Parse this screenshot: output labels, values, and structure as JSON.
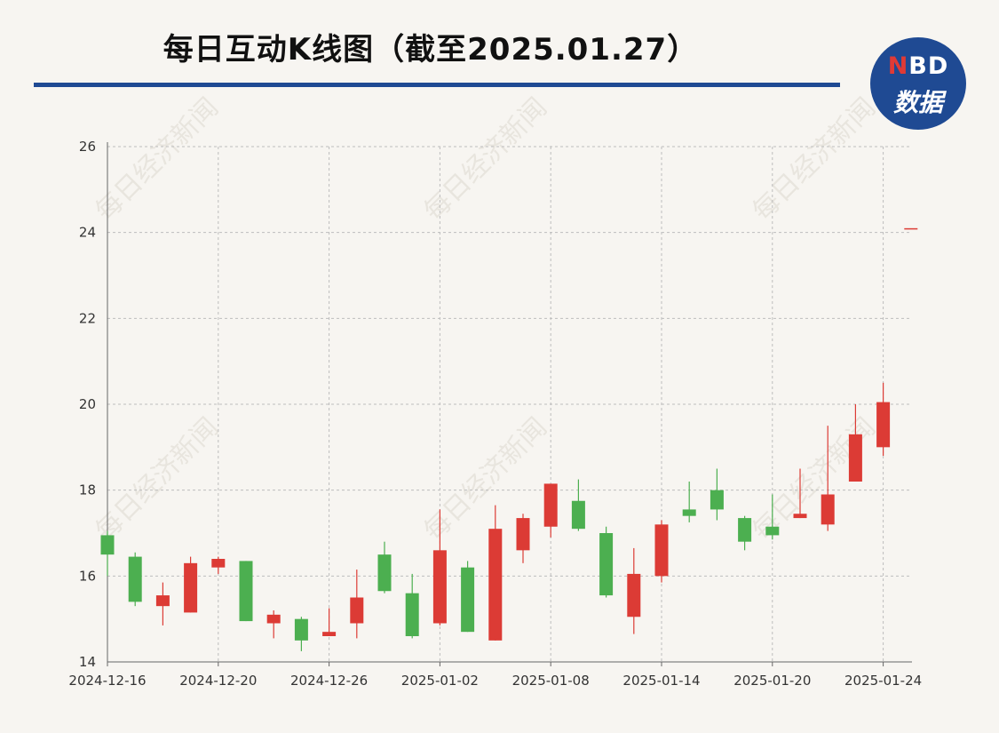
{
  "title": "每日互动K线图（截至2025.01.27）",
  "logo": {
    "n": "N",
    "rest": "BD",
    "line2": "数据"
  },
  "watermark": "每日经济新闻",
  "colors": {
    "up": "#dc3b35",
    "down": "#4caf50",
    "brand": "#1f4a93",
    "grid": "#bdbdbd"
  },
  "chart_data": {
    "type": "candlestick",
    "title": "每日互动K线图（截至2025.01.27）",
    "ylim": [
      14,
      26
    ],
    "yticks": [
      14,
      16,
      18,
      20,
      22,
      24,
      26
    ],
    "xtick_labels": [
      "2024-12-16",
      "2024-12-20",
      "2024-12-26",
      "2025-01-02",
      "2025-01-08",
      "2025-01-14",
      "2025-01-20",
      "2025-01-24"
    ],
    "xtick_indices": [
      0,
      4,
      8,
      12,
      16,
      20,
      24,
      28
    ],
    "grid": true,
    "candles": [
      {
        "date": "2024-12-16",
        "open": 16.95,
        "close": 16.5,
        "high": 17.05,
        "low": 16.0
      },
      {
        "date": "2024-12-17",
        "open": 16.45,
        "close": 15.4,
        "high": 16.55,
        "low": 15.3
      },
      {
        "date": "2024-12-18",
        "open": 15.3,
        "close": 15.55,
        "high": 15.85,
        "low": 14.85
      },
      {
        "date": "2024-12-19",
        "open": 15.15,
        "close": 16.3,
        "high": 16.45,
        "low": 15.15
      },
      {
        "date": "2024-12-20",
        "open": 16.2,
        "close": 16.4,
        "high": 16.45,
        "low": 16.05
      },
      {
        "date": "2024-12-23",
        "open": 16.35,
        "close": 14.95,
        "high": 16.35,
        "low": 14.95
      },
      {
        "date": "2024-12-24",
        "open": 14.9,
        "close": 15.1,
        "high": 15.2,
        "low": 14.55
      },
      {
        "date": "2024-12-25",
        "open": 15.0,
        "close": 14.5,
        "high": 15.05,
        "low": 14.25
      },
      {
        "date": "2024-12-26",
        "open": 14.6,
        "close": 14.7,
        "high": 15.25,
        "low": 14.6
      },
      {
        "date": "2024-12-27",
        "open": 14.9,
        "close": 15.5,
        "high": 16.15,
        "low": 14.55
      },
      {
        "date": "2024-12-30",
        "open": 16.5,
        "close": 15.65,
        "high": 16.8,
        "low": 15.6
      },
      {
        "date": "2024-12-31",
        "open": 15.6,
        "close": 14.6,
        "high": 16.05,
        "low": 14.55
      },
      {
        "date": "2025-01-02",
        "open": 14.9,
        "close": 16.6,
        "high": 17.55,
        "low": 14.85
      },
      {
        "date": "2025-01-03",
        "open": 16.2,
        "close": 14.7,
        "high": 16.35,
        "low": 14.7
      },
      {
        "date": "2025-01-06",
        "open": 14.5,
        "close": 17.1,
        "high": 17.65,
        "low": 14.5
      },
      {
        "date": "2025-01-07",
        "open": 16.6,
        "close": 17.35,
        "high": 17.45,
        "low": 16.3
      },
      {
        "date": "2025-01-08",
        "open": 17.15,
        "close": 18.15,
        "high": 18.15,
        "low": 16.9
      },
      {
        "date": "2025-01-09",
        "open": 17.75,
        "close": 17.1,
        "high": 18.25,
        "low": 17.05
      },
      {
        "date": "2025-01-10",
        "open": 17.0,
        "close": 15.55,
        "high": 17.15,
        "low": 15.5
      },
      {
        "date": "2025-01-13",
        "open": 15.05,
        "close": 16.05,
        "high": 16.65,
        "low": 14.65
      },
      {
        "date": "2025-01-14",
        "open": 16.0,
        "close": 17.2,
        "high": 17.3,
        "low": 15.85
      },
      {
        "date": "2025-01-15",
        "open": 17.55,
        "close": 17.4,
        "high": 18.2,
        "low": 17.25
      },
      {
        "date": "2025-01-16",
        "open": 18.0,
        "close": 17.55,
        "high": 18.5,
        "low": 17.3
      },
      {
        "date": "2025-01-17",
        "open": 17.35,
        "close": 16.8,
        "high": 17.4,
        "low": 16.6
      },
      {
        "date": "2025-01-20",
        "open": 17.15,
        "close": 16.95,
        "high": 17.9,
        "low": 16.85
      },
      {
        "date": "2025-01-21",
        "open": 17.35,
        "close": 17.45,
        "high": 18.5,
        "low": 17.35
      },
      {
        "date": "2025-01-22",
        "open": 17.2,
        "close": 17.9,
        "high": 19.5,
        "low": 17.05
      },
      {
        "date": "2025-01-23",
        "open": 18.2,
        "close": 19.3,
        "high": 20.0,
        "low": 18.2
      },
      {
        "date": "2025-01-24",
        "open": 19.0,
        "close": 20.05,
        "high": 20.5,
        "low": 18.8
      },
      {
        "date": "2025-01-27",
        "open": 24.1,
        "close": 24.1,
        "high": 24.1,
        "low": 24.1
      }
    ]
  }
}
